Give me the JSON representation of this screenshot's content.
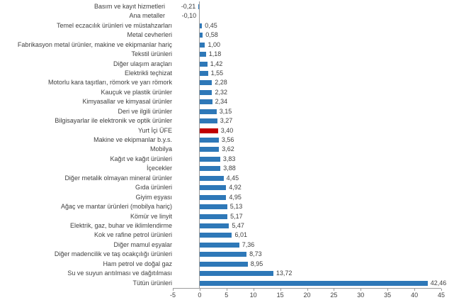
{
  "chart_data": {
    "type": "bar",
    "orientation": "horizontal",
    "title": "",
    "xlabel": "",
    "ylabel": "",
    "xlim": [
      -5,
      45
    ],
    "x_ticks": [
      -5,
      0,
      5,
      10,
      15,
      20,
      25,
      30,
      35,
      40,
      45
    ],
    "grid": false,
    "legend": false,
    "bar_color": "#2E78B8",
    "highlight_color": "#C00000",
    "highlight_index": 13,
    "highlight_category": "Yurt İçi ÜFE",
    "categories": [
      "Basım ve kayıt hizmetleri",
      "Ana metaller",
      "Temel eczacılık ürünleri ve müstahzarları",
      "Metal cevherleri",
      "Fabrikasyon metal ürünler, makine ve ekipmanlar hariç",
      "Tekstil ürünleri",
      "Diğer ulaşım araçları",
      "Elektrikli teçhizat",
      "Motorlu kara taşıtları, römork ve yarı römork",
      "Kauçuk ve plastik ürünler",
      "Kimyasallar ve kimyasal ürünler",
      "Deri ve ilgili ürünler",
      "Bilgisayarlar ile elektronik ve optik ürünler",
      "Yurt İçi ÜFE",
      "Makine ve ekipmanlar b.y.s.",
      "Mobilya",
      "Kağıt ve kağıt ürünleri",
      "İçecekler",
      "Diğer metalik olmayan mineral ürünler",
      "Gıda ürünleri",
      "Giyim eşyası",
      "Ağaç ve mantar ürünleri (mobilya hariç)",
      "Kömür ve linyit",
      "Elektrik, gaz, buhar ve iklimlendirme",
      "Kok ve rafine petrol ürünleri",
      "Diğer mamul eşyalar",
      "Diğer madencilik ve taş ocakçılığı ürünleri",
      "Ham petrol ve doğal gaz",
      "Su ve suyun arıtılması ve dağıtılması",
      "Tütün ürünleri"
    ],
    "values": [
      -0.21,
      -0.1,
      0.45,
      0.58,
      1.0,
      1.18,
      1.42,
      1.55,
      2.28,
      2.32,
      2.34,
      3.15,
      3.27,
      3.4,
      3.56,
      3.62,
      3.83,
      3.88,
      4.45,
      4.92,
      4.95,
      5.13,
      5.17,
      5.47,
      6.01,
      7.36,
      8.73,
      8.95,
      13.72,
      42.46
    ],
    "value_labels": [
      "-0,21",
      "-0,10",
      "0,45",
      "0,58",
      "1,00",
      "1,18",
      "1,42",
      "1,55",
      "2,28",
      "2,32",
      "2,34",
      "3,15",
      "3,27",
      "3,40",
      "3,56",
      "3,62",
      "3,83",
      "3,88",
      "4,45",
      "4,92",
      "4,95",
      "5,13",
      "5,17",
      "5,47",
      "6,01",
      "7,36",
      "8,73",
      "8,95",
      "13,72",
      "42,46"
    ]
  }
}
